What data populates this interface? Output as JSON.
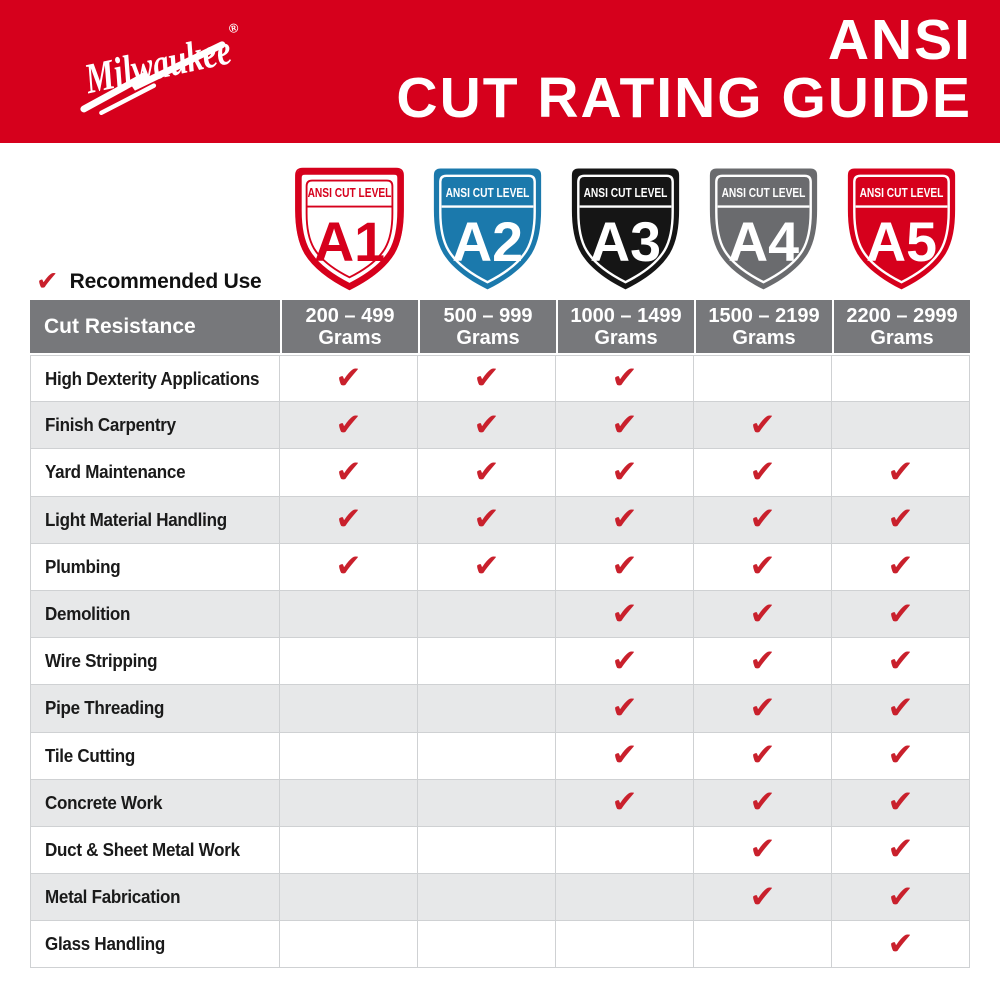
{
  "header": {
    "brand": "Milwaukee",
    "registered": "®",
    "title_line1": "ANSI",
    "title_line2": "CUT RATING GUIDE",
    "background": "#D6001C",
    "text_color": "#FFFFFF"
  },
  "legend": {
    "check": "✔",
    "label": "Recommended Use"
  },
  "shield_badges": {
    "top_label": "ANSI CUT LEVEL",
    "items": [
      {
        "level": "A1",
        "style": "outline",
        "fill": "#FFFFFF",
        "accent": "#D6001C"
      },
      {
        "level": "A2",
        "style": "solid",
        "fill": "#1B79AC",
        "accent": "#FFFFFF"
      },
      {
        "level": "A3",
        "style": "solid",
        "fill": "#151515",
        "accent": "#FFFFFF"
      },
      {
        "level": "A4",
        "style": "solid",
        "fill": "#6A6B6E",
        "accent": "#FFFFFF"
      },
      {
        "level": "A5",
        "style": "solid",
        "fill": "#D6001C",
        "accent": "#FFFFFF"
      }
    ]
  },
  "table": {
    "corner_header": "Cut Resistance",
    "columns": [
      {
        "level": "A1",
        "range": "200 – 499",
        "unit": "Grams"
      },
      {
        "level": "A2",
        "range": "500 – 999",
        "unit": "Grams"
      },
      {
        "level": "A3",
        "range": "1000 – 1499",
        "unit": "Grams"
      },
      {
        "level": "A4",
        "range": "1500 – 2199",
        "unit": "Grams"
      },
      {
        "level": "A5",
        "range": "2200 – 2999",
        "unit": "Grams"
      }
    ],
    "check_glyph": "✔",
    "rows": [
      {
        "label": "High Dexterity Applications",
        "checks": [
          true,
          true,
          true,
          false,
          false
        ]
      },
      {
        "label": "Finish Carpentry",
        "checks": [
          true,
          true,
          true,
          true,
          false
        ]
      },
      {
        "label": "Yard Maintenance",
        "checks": [
          true,
          true,
          true,
          true,
          true
        ]
      },
      {
        "label": "Light Material Handling",
        "checks": [
          true,
          true,
          true,
          true,
          true
        ]
      },
      {
        "label": "Plumbing",
        "checks": [
          true,
          true,
          true,
          true,
          true
        ]
      },
      {
        "label": "Demolition",
        "checks": [
          false,
          false,
          true,
          true,
          true
        ]
      },
      {
        "label": "Wire Stripping",
        "checks": [
          false,
          false,
          true,
          true,
          true
        ]
      },
      {
        "label": "Pipe Threading",
        "checks": [
          false,
          false,
          true,
          true,
          true
        ]
      },
      {
        "label": "Tile Cutting",
        "checks": [
          false,
          false,
          true,
          true,
          true
        ]
      },
      {
        "label": "Concrete Work",
        "checks": [
          false,
          false,
          true,
          true,
          true
        ]
      },
      {
        "label": "Duct & Sheet Metal Work",
        "checks": [
          false,
          false,
          false,
          true,
          true
        ]
      },
      {
        "label": "Metal Fabrication",
        "checks": [
          false,
          false,
          false,
          true,
          true
        ]
      },
      {
        "label": "Glass Handling",
        "checks": [
          false,
          false,
          false,
          false,
          true
        ]
      }
    ]
  },
  "colors": {
    "header_row_gray": "#77787B",
    "row_alt_gray": "#E7E8E9",
    "grid_line": "#CFD1D3",
    "check_red": "#C9202C"
  }
}
